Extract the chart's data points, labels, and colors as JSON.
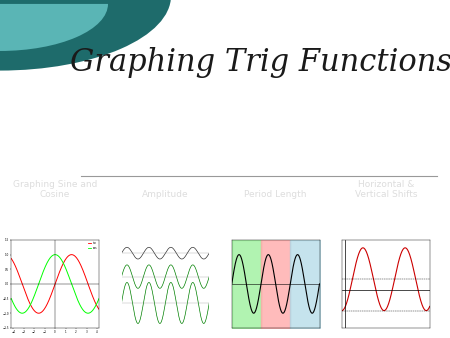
{
  "title": "Graphing Trig Functions",
  "title_font": "serif",
  "title_fontsize": 22,
  "title_color": "#1a1a1a",
  "bg_color": "#ffffff",
  "panel_bg": "#555555",
  "separator_color": "#999999",
  "teal_dark": "#1e6b6b",
  "teal_light": "#5ab5b5",
  "labels": [
    "Graphing Sine and\nCosine",
    "Amplitude",
    "Period Length",
    "Horizontal &\nVertical Shifts"
  ],
  "label_color": "#dddddd",
  "label_fontsize": 6.5
}
